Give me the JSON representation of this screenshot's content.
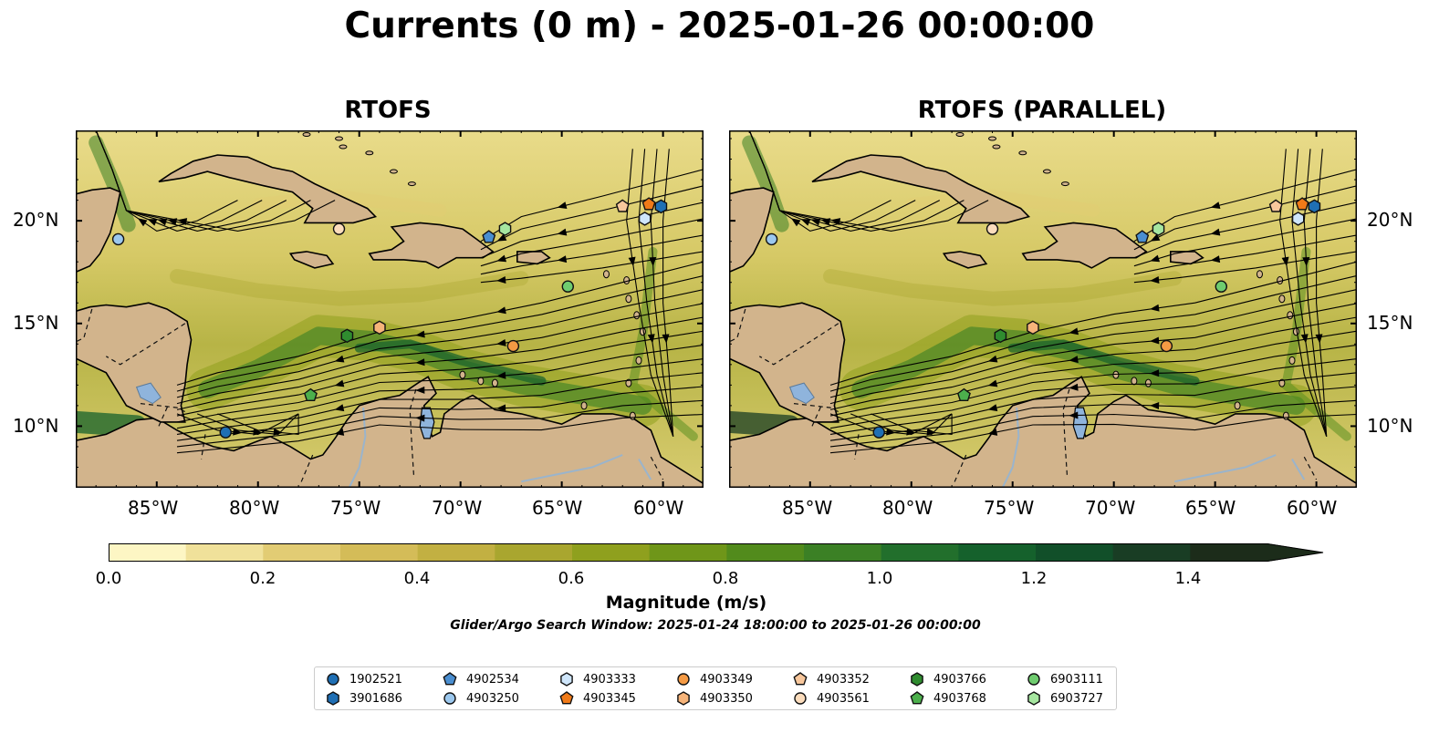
{
  "title": "Currents (0 m) - 2025-01-26 00:00:00",
  "panels": [
    {
      "title": "RTOFS"
    },
    {
      "title": "RTOFS (PARALLEL)"
    }
  ],
  "axes": {
    "lat_labels": [
      "20°N",
      "15°N",
      "10°N"
    ],
    "lon_labels": [
      "85°W",
      "80°W",
      "75°W",
      "70°W",
      "65°W",
      "60°W"
    ]
  },
  "colorbar": {
    "label": "Magnitude (m/s)",
    "ticks": [
      "0.0",
      "0.2",
      "0.4",
      "0.6",
      "0.8",
      "1.0",
      "1.2",
      "1.4"
    ],
    "levels": [
      0.0,
      0.1,
      0.2,
      0.3,
      0.4,
      0.5,
      0.6,
      0.7,
      0.8,
      0.9,
      1.0,
      1.1,
      1.2,
      1.3,
      1.4,
      1.5
    ],
    "colors": [
      "#fdf6c4",
      "#f0e19a",
      "#e2cc74",
      "#d4bc58",
      "#c2b042",
      "#a9a62f",
      "#8fa01e",
      "#6f9619",
      "#528b1c",
      "#3b8025",
      "#226f2c",
      "#15612c",
      "#114f29",
      "#193d24",
      "#1c2c1a"
    ],
    "extend": "max"
  },
  "search_window": "Glider/Argo Search Window: 2025-01-24 18:00:00 to 2025-01-26 00:00:00",
  "map_colors": {
    "land": "#d2b48c",
    "lake": "#8fb4dc",
    "river": "#9ab4cc",
    "ocean": "#e8dc8c"
  },
  "floats": [
    {
      "id": "1902521",
      "marker": "circle",
      "color": "#1f6fb4",
      "lon": -81.6,
      "lat": 9.7
    },
    {
      "id": "3901686",
      "marker": "hexagon",
      "color": "#1f6fb4",
      "lon": -60.1,
      "lat": 20.7
    },
    {
      "id": "4902534",
      "marker": "pentagon",
      "color": "#4a8ed0",
      "lon": -68.6,
      "lat": 19.2
    },
    {
      "id": "4903250",
      "marker": "circle",
      "color": "#9cc8ee",
      "lon": -86.9,
      "lat": 19.1
    },
    {
      "id": "4903333",
      "marker": "hexagon",
      "color": "#cfe6fb",
      "lon": -60.9,
      "lat": 20.1
    },
    {
      "id": "4903345",
      "marker": "pentagon",
      "color": "#f07a18",
      "lon": -60.7,
      "lat": 20.8
    },
    {
      "id": "4903349",
      "marker": "circle",
      "color": "#f59a44",
      "lon": -67.4,
      "lat": 13.9
    },
    {
      "id": "4903350",
      "marker": "hexagon",
      "color": "#f6b47a",
      "lon": -74.0,
      "lat": 14.8
    },
    {
      "id": "4903352",
      "marker": "pentagon",
      "color": "#f8c79c",
      "lon": -62.0,
      "lat": 20.7
    },
    {
      "id": "4903561",
      "marker": "circle",
      "color": "#fbdcbc",
      "lon": -76.0,
      "lat": 19.6
    },
    {
      "id": "4903766",
      "marker": "hexagon",
      "color": "#2f8c2f",
      "lon": -75.6,
      "lat": 14.4
    },
    {
      "id": "4903768",
      "marker": "pentagon",
      "color": "#4caf4c",
      "lon": -77.4,
      "lat": 11.5
    },
    {
      "id": "6903111",
      "marker": "circle",
      "color": "#6fcc6f",
      "lon": -64.7,
      "lat": 16.8
    },
    {
      "id": "6903727",
      "marker": "hexagon",
      "color": "#a6e6a0",
      "lon": -67.8,
      "lat": 19.6
    }
  ]
}
